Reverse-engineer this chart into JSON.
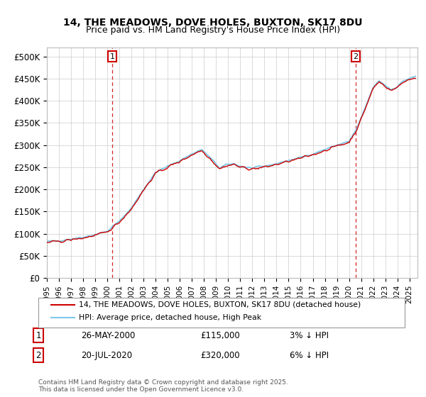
{
  "title": "14, THE MEADOWS, DOVE HOLES, BUXTON, SK17 8DU",
  "subtitle": "Price paid vs. HM Land Registry's House Price Index (HPI)",
  "ylim": [
    0,
    520000
  ],
  "yticks": [
    0,
    50000,
    100000,
    150000,
    200000,
    250000,
    300000,
    350000,
    400000,
    450000,
    500000
  ],
  "ytick_labels": [
    "£0",
    "£50K",
    "£100K",
    "£150K",
    "£200K",
    "£250K",
    "£300K",
    "£350K",
    "£400K",
    "£450K",
    "£500K"
  ],
  "hpi_color": "#7ec8e8",
  "price_color": "#cc0000",
  "legend_label_price": "14, THE MEADOWS, DOVE HOLES, BUXTON, SK17 8DU (detached house)",
  "legend_label_hpi": "HPI: Average price, detached house, High Peak",
  "transaction1_date": "26-MAY-2000",
  "transaction1_price": "£115,000",
  "transaction1_hpi": "3% ↓ HPI",
  "transaction2_date": "20-JUL-2020",
  "transaction2_price": "£320,000",
  "transaction2_hpi": "6% ↓ HPI",
  "footer": "Contains HM Land Registry data © Crown copyright and database right 2025.\nThis data is licensed under the Open Government Licence v3.0.",
  "background_color": "#ffffff",
  "grid_color": "#cccccc"
}
